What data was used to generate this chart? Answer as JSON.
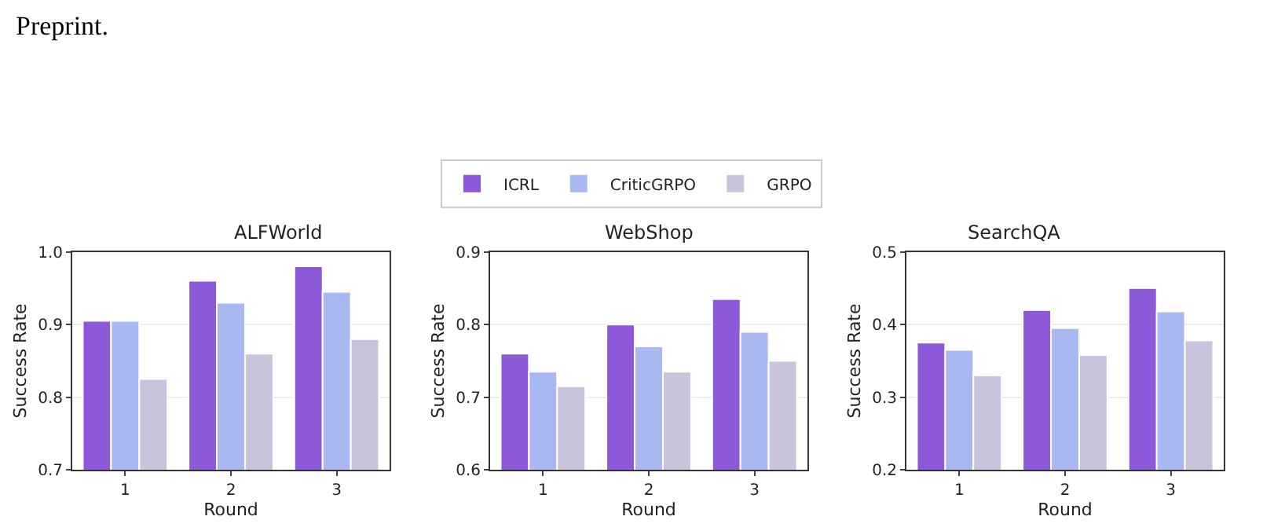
{
  "chart_data": [
    {
      "type": "bar",
      "title": "ALFWorld",
      "xlabel": "Round",
      "ylabel": "Success Rate",
      "categories": [
        "1",
        "2",
        "3"
      ],
      "series": [
        {
          "name": "ICRL",
          "color": "#8c59d9",
          "values": [
            0.905,
            0.96,
            0.98
          ]
        },
        {
          "name": "CriticGRPO",
          "color": "#a9b8f0",
          "values": [
            0.905,
            0.93,
            0.945
          ]
        },
        {
          "name": "GRPO",
          "color": "#c9c3dc",
          "values": [
            0.825,
            0.86,
            0.88
          ]
        }
      ],
      "ylim": [
        0.7,
        1.0
      ],
      "yticks": [
        0.7,
        0.8,
        0.9,
        {
          "value": 1,
          "label": "1.0"
        }
      ],
      "grid": "y",
      "legend": "top",
      "annotations": [
        "Preprint."
      ]
    },
    {
      "type": "bar",
      "title": "WebShop",
      "xlabel": "Round",
      "ylabel": "Success Rate",
      "categories": [
        "1",
        "2",
        "3"
      ],
      "series": [
        {
          "color": "#8c59d9",
          "values": [
            0.76,
            0.8,
            0.835
          ]
        },
        {
          "color": "#a9b8f0",
          "values": [
            0.735,
            0.77,
            0.79
          ]
        },
        {
          "color": "#c9c3dc",
          "values": [
            0.715,
            0.735,
            0.75
          ]
        }
      ],
      "ylim": [
        0.6,
        0.9
      ],
      "yticks": [
        0.6,
        0.7,
        0.8,
        0.9
      ],
      "grid": "y"
    },
    {
      "type": "bar",
      "title": "SearchQA",
      "xlabel": "Round",
      "ylabel": "Success Rate",
      "categories": [
        "1",
        "2",
        "3"
      ],
      "series": [
        {
          "color": "#8c59d9",
          "values": [
            0.375,
            0.42,
            0.45
          ]
        },
        {
          "color": "#a9b8f0",
          "values": [
            0.365,
            0.395,
            0.418
          ]
        },
        {
          "color": "#c9c3dc",
          "values": [
            0.33,
            0.358,
            0.378
          ]
        }
      ],
      "ylim": [
        0.2,
        0.5
      ],
      "yticks": [
        0.2,
        0.3,
        0.4,
        0.5
      ],
      "grid": "y"
    }
  ]
}
